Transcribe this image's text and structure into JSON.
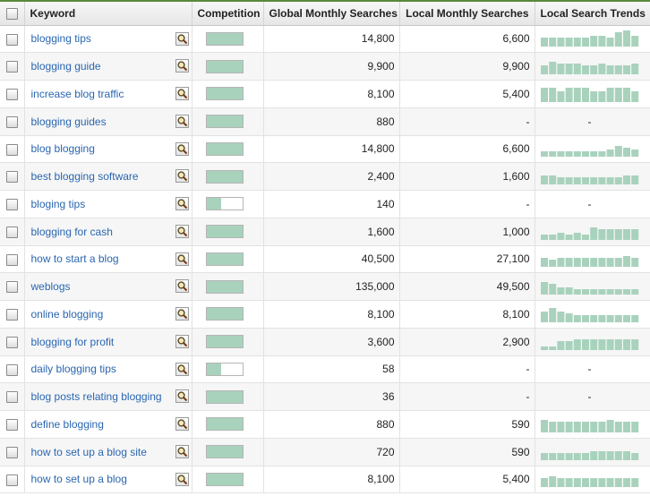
{
  "columns": {
    "keyword": "Keyword",
    "competition": "Competition",
    "global": "Global Monthly Searches",
    "local": "Local Monthly Searches",
    "trends": "Local Search Trends"
  },
  "colors": {
    "bar": "#a9d2bd",
    "link": "#2a66b0"
  },
  "rows": [
    {
      "keyword": "blogging tips",
      "competition": 1.0,
      "global": "14,800",
      "local": "6,600",
      "trend": [
        5,
        5,
        5,
        5,
        5,
        5,
        6,
        6,
        5,
        8,
        9,
        6
      ]
    },
    {
      "keyword": "blogging guide",
      "competition": 1.0,
      "global": "9,900",
      "local": "9,900",
      "trend": [
        5,
        7,
        6,
        6,
        6,
        5,
        5,
        6,
        5,
        5,
        5,
        6
      ]
    },
    {
      "keyword": "increase blog traffic",
      "competition": 1.0,
      "global": "8,100",
      "local": "5,400",
      "trend": [
        8,
        8,
        6,
        8,
        8,
        8,
        6,
        6,
        8,
        8,
        8,
        6
      ]
    },
    {
      "keyword": "blogging guides",
      "competition": 1.0,
      "global": "880",
      "local": "-",
      "trend": null
    },
    {
      "keyword": "blog blogging",
      "competition": 1.0,
      "global": "14,800",
      "local": "6,600",
      "trend": [
        3,
        3,
        3,
        3,
        3,
        3,
        3,
        3,
        4,
        6,
        5,
        4
      ]
    },
    {
      "keyword": "best blogging software",
      "competition": 1.0,
      "global": "2,400",
      "local": "1,600",
      "trend": [
        5,
        5,
        4,
        4,
        4,
        4,
        4,
        4,
        4,
        4,
        5,
        5
      ]
    },
    {
      "keyword": "bloging tips",
      "competition": 0.42,
      "global": "140",
      "local": "-",
      "trend": null
    },
    {
      "keyword": "blogging for cash",
      "competition": 1.0,
      "global": "1,600",
      "local": "1,000",
      "trend": [
        3,
        3,
        4,
        3,
        4,
        3,
        7,
        6,
        6,
        6,
        6,
        6
      ]
    },
    {
      "keyword": "how to start a blog",
      "competition": 1.0,
      "global": "40,500",
      "local": "27,100",
      "trend": [
        5,
        4,
        5,
        5,
        5,
        5,
        5,
        5,
        5,
        5,
        6,
        5
      ]
    },
    {
      "keyword": "weblogs",
      "competition": 1.0,
      "global": "135,000",
      "local": "49,500",
      "trend": [
        7,
        6,
        4,
        4,
        3,
        3,
        3,
        3,
        3,
        3,
        3,
        3
      ]
    },
    {
      "keyword": "online blogging",
      "competition": 1.0,
      "global": "8,100",
      "local": "8,100",
      "trend": [
        6,
        8,
        6,
        5,
        4,
        4,
        4,
        4,
        4,
        4,
        4,
        4
      ]
    },
    {
      "keyword": "blogging for profit",
      "competition": 1.0,
      "global": "3,600",
      "local": "2,900",
      "trend": [
        2,
        2,
        5,
        5,
        6,
        6,
        6,
        6,
        6,
        6,
        6,
        6
      ]
    },
    {
      "keyword": "daily blogging tips",
      "competition": 0.42,
      "global": "58",
      "local": "-",
      "trend": null
    },
    {
      "keyword": "blog posts relating blogging",
      "competition": 1.0,
      "global": "36",
      "local": "-",
      "trend": null
    },
    {
      "keyword": "define blogging",
      "competition": 1.0,
      "global": "880",
      "local": "590",
      "trend": [
        7,
        6,
        6,
        6,
        6,
        6,
        6,
        6,
        7,
        6,
        6,
        6
      ]
    },
    {
      "keyword": "how to set up a blog site",
      "competition": 1.0,
      "global": "720",
      "local": "590",
      "trend": [
        4,
        4,
        4,
        4,
        4,
        4,
        5,
        5,
        5,
        5,
        5,
        4
      ]
    },
    {
      "keyword": "how to set up a blog",
      "competition": 1.0,
      "global": "8,100",
      "local": "5,400",
      "trend": [
        5,
        6,
        5,
        5,
        5,
        5,
        5,
        5,
        5,
        5,
        5,
        5
      ]
    }
  ]
}
